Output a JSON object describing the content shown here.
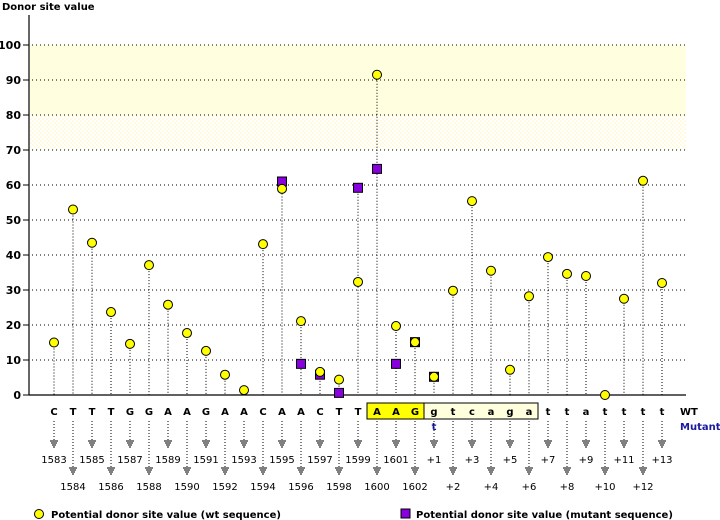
{
  "chart_data": {
    "type": "scatter",
    "title": "Donor site value",
    "ylabel": "Donor site value",
    "ylim": [
      0,
      100
    ],
    "yticks": [
      0,
      10,
      20,
      30,
      40,
      50,
      60,
      70,
      80,
      90,
      100
    ],
    "grid": true,
    "highlight_bands": [
      {
        "from": 80,
        "to": 100,
        "style": "solid",
        "color": "#ffffdf"
      },
      {
        "from": 70,
        "to": 80,
        "style": "dithered",
        "color": "#fffff0"
      }
    ],
    "row_labels": {
      "wt": "WT",
      "mutant": "Mutant"
    },
    "positions": [
      "1583",
      "1584",
      "1585",
      "1586",
      "1587",
      "1588",
      "1589",
      "1590",
      "1591",
      "1592",
      "1593",
      "1594",
      "1595",
      "1596",
      "1597",
      "1598",
      "1599",
      "1600",
      "1601",
      "1602",
      "+1",
      "+2",
      "+3",
      "+4",
      "+5",
      "+6",
      "+7",
      "+8",
      "+9",
      "+10",
      "+11",
      "+12",
      "+13"
    ],
    "wt_bases": [
      "C",
      "T",
      "T",
      "T",
      "G",
      "G",
      "A",
      "A",
      "G",
      "A",
      "A",
      "C",
      "A",
      "A",
      "C",
      "T",
      "T",
      "A",
      "A",
      "G",
      "g",
      "t",
      "c",
      "a",
      "g",
      "a",
      "t",
      "t",
      "a",
      "t",
      "t",
      "t",
      "t"
    ],
    "mutant_bases": [
      "",
      "",
      "",
      "",
      "",
      "",
      "",
      "",
      "",
      "",
      "",
      "",
      "",
      "",
      "",
      "",
      "",
      "",
      "",
      "",
      "t",
      "",
      "",
      "",
      "",
      "",
      "",
      "",
      "",
      "",
      "",
      "",
      ""
    ],
    "exon_highlight": {
      "start_index": 17,
      "end_index": 19,
      "color": "#ffff00"
    },
    "intron_highlight": {
      "start_index": 20,
      "end_index": 25,
      "color": "#ffffdd"
    },
    "series": [
      {
        "name": "Potential donor site value (wt sequence)",
        "marker": "circle",
        "color": "#ffff00",
        "values": [
          15,
          53,
          43.5,
          23.7,
          14.6,
          37.1,
          25.8,
          17.7,
          12.6,
          5.8,
          1.4,
          43.1,
          58.9,
          21.1,
          6.6,
          4.4,
          32.3,
          91.5,
          19.7,
          15.1,
          5.2,
          29.8,
          55.4,
          35.5,
          7.2,
          28.2,
          39.4,
          34.6,
          34.0,
          0,
          27.5,
          61.2,
          32
        ]
      },
      {
        "name": "Potential donor site value (mutant sequence)",
        "marker": "square",
        "color": "#8800dd",
        "values": [
          null,
          null,
          null,
          null,
          null,
          null,
          null,
          null,
          null,
          null,
          null,
          null,
          61,
          8.9,
          5.8,
          0.6,
          59.2,
          64.6,
          8.9,
          15.1,
          5.2,
          null,
          null,
          null,
          null,
          null,
          null,
          null,
          null,
          null,
          null,
          null,
          null
        ]
      }
    ],
    "legend": [
      {
        "label": "Potential donor site value (wt sequence)",
        "marker": "circle",
        "color": "#ffff00"
      },
      {
        "label": "Potential donor site value (mutant sequence)",
        "marker": "square",
        "color": "#8800dd"
      }
    ],
    "legend_placement": "bottom"
  }
}
